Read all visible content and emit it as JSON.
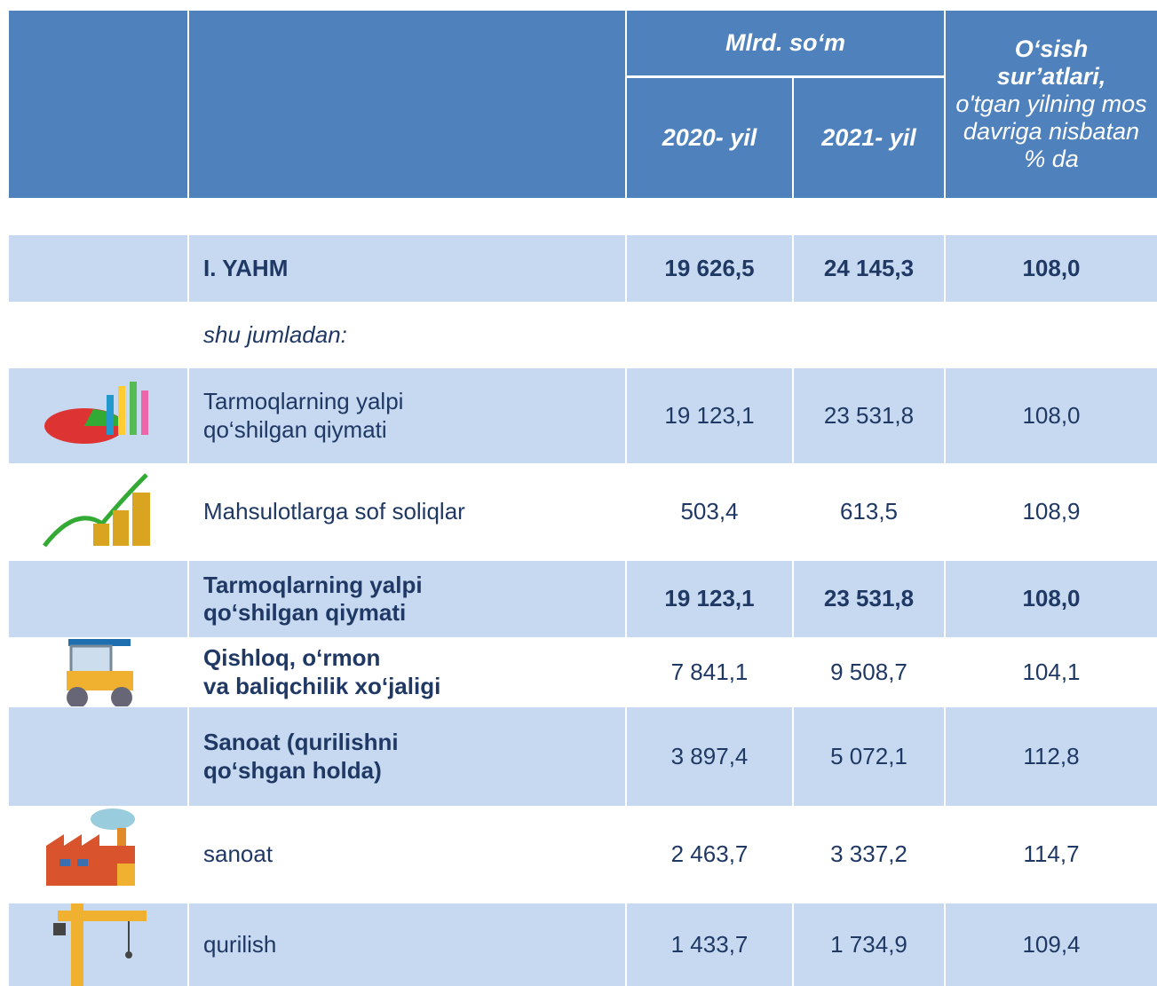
{
  "header": {
    "unit": "Mlrd. so‘m",
    "col_2020": "2020- yil",
    "col_2021": "2021- yil",
    "growth_title": "O‘sish sur’atlari,",
    "growth_subtitle": "o'tgan yilning mos davriga nisbatan % da"
  },
  "table": {
    "rows": [
      {
        "label": "I. YAHM",
        "style": "total",
        "values": [
          "19 626,5",
          "24 145,3",
          "108,0"
        ]
      },
      {
        "label": "shu jumladan:",
        "style": "note",
        "values": []
      },
      {
        "label": "Tarmoqlarning yalpi\nqo‘shilgan qiymati",
        "style": "item-shaded",
        "values": [
          "19 123,1",
          "23 531,8",
          "108,0"
        ]
      },
      {
        "label": "Mahsulotlarga sof soliqlar",
        "style": "item",
        "values": [
          "503,4",
          "613,5",
          "108,9"
        ]
      },
      {
        "label": "Tarmoqlarning yalpi\nqo‘shilgan qiymati",
        "style": "total",
        "values": [
          "19 123,1",
          "23 531,8",
          "108,0"
        ]
      },
      {
        "label": "Qishloq, o‘rmon\nva baliqchilik xo‘jaligi",
        "style": "group",
        "values": [
          "7 841,1",
          "9 508,7",
          "104,1"
        ]
      },
      {
        "label": "Sanoat (qurilishni\nqo‘shgan holda)",
        "style": "group-shaded",
        "values": [
          "3 897,4",
          "5 072,1",
          "112,8"
        ]
      },
      {
        "label": "sanoat",
        "style": "item",
        "values": [
          "2 463,7",
          "3 337,2",
          "114,7"
        ]
      },
      {
        "label": "qurilish",
        "style": "item-shaded",
        "values": [
          "1 433,7",
          "1 734,9",
          "109,4"
        ]
      }
    ]
  }
}
